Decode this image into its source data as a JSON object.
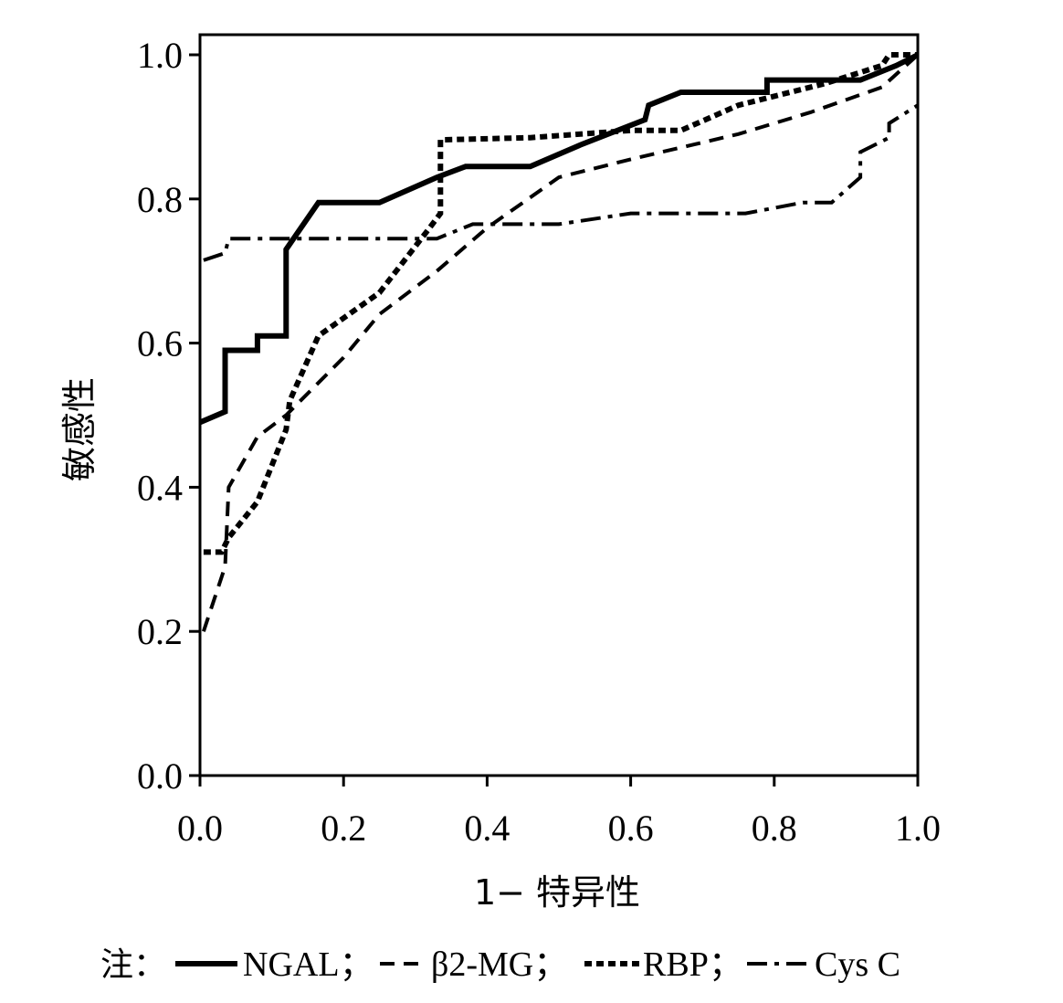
{
  "chart_data": {
    "type": "line",
    "xlabel": "1− 特异性",
    "ylabel": "敏感性",
    "xlim": [
      0,
      1
    ],
    "ylim": [
      0,
      1
    ],
    "x_ticks": [
      "0.0",
      "0.2",
      "0.4",
      "0.6",
      "0.8",
      "1.0"
    ],
    "y_ticks": [
      "0.0",
      "0.2",
      "0.4",
      "0.6",
      "0.8",
      "1.0"
    ],
    "grid": false,
    "legend_position": "bottom",
    "legend_prefix": "注：",
    "series": [
      {
        "name": "NGAL；",
        "style": "solid",
        "points": [
          [
            0.0,
            0.49
          ],
          [
            0.035,
            0.505
          ],
          [
            0.035,
            0.59
          ],
          [
            0.08,
            0.59
          ],
          [
            0.08,
            0.61
          ],
          [
            0.12,
            0.61
          ],
          [
            0.12,
            0.73
          ],
          [
            0.165,
            0.795
          ],
          [
            0.25,
            0.795
          ],
          [
            0.33,
            0.83
          ],
          [
            0.37,
            0.845
          ],
          [
            0.46,
            0.845
          ],
          [
            0.53,
            0.875
          ],
          [
            0.62,
            0.91
          ],
          [
            0.625,
            0.93
          ],
          [
            0.67,
            0.948
          ],
          [
            0.79,
            0.948
          ],
          [
            0.79,
            0.965
          ],
          [
            0.92,
            0.965
          ],
          [
            0.97,
            0.985
          ],
          [
            1.0,
            1.0
          ]
        ]
      },
      {
        "name": "β2-MG；",
        "style": "dashed",
        "points": [
          [
            0.005,
            0.2
          ],
          [
            0.035,
            0.29
          ],
          [
            0.04,
            0.4
          ],
          [
            0.08,
            0.47
          ],
          [
            0.12,
            0.5
          ],
          [
            0.2,
            0.58
          ],
          [
            0.25,
            0.64
          ],
          [
            0.33,
            0.7
          ],
          [
            0.4,
            0.76
          ],
          [
            0.5,
            0.83
          ],
          [
            0.6,
            0.855
          ],
          [
            0.75,
            0.89
          ],
          [
            0.85,
            0.92
          ],
          [
            0.95,
            0.955
          ],
          [
            1.0,
            1.0
          ]
        ]
      },
      {
        "name": "RBP；",
        "style": "dotted",
        "points": [
          [
            0.005,
            0.31
          ],
          [
            0.03,
            0.31
          ],
          [
            0.04,
            0.33
          ],
          [
            0.08,
            0.38
          ],
          [
            0.12,
            0.48
          ],
          [
            0.125,
            0.52
          ],
          [
            0.165,
            0.61
          ],
          [
            0.25,
            0.67
          ],
          [
            0.32,
            0.76
          ],
          [
            0.335,
            0.78
          ],
          [
            0.335,
            0.882
          ],
          [
            0.46,
            0.885
          ],
          [
            0.6,
            0.895
          ],
          [
            0.67,
            0.895
          ],
          [
            0.75,
            0.93
          ],
          [
            0.87,
            0.96
          ],
          [
            0.95,
            0.985
          ],
          [
            0.96,
            1.0
          ],
          [
            1.0,
            1.0
          ]
        ]
      },
      {
        "name": "Cys C",
        "style": "dashdot",
        "points": [
          [
            0.005,
            0.715
          ],
          [
            0.035,
            0.725
          ],
          [
            0.04,
            0.745
          ],
          [
            0.33,
            0.745
          ],
          [
            0.38,
            0.765
          ],
          [
            0.5,
            0.765
          ],
          [
            0.6,
            0.78
          ],
          [
            0.76,
            0.78
          ],
          [
            0.84,
            0.795
          ],
          [
            0.88,
            0.795
          ],
          [
            0.92,
            0.83
          ],
          [
            0.92,
            0.865
          ],
          [
            0.96,
            0.885
          ],
          [
            0.96,
            0.905
          ],
          [
            1.0,
            0.93
          ]
        ]
      }
    ]
  }
}
